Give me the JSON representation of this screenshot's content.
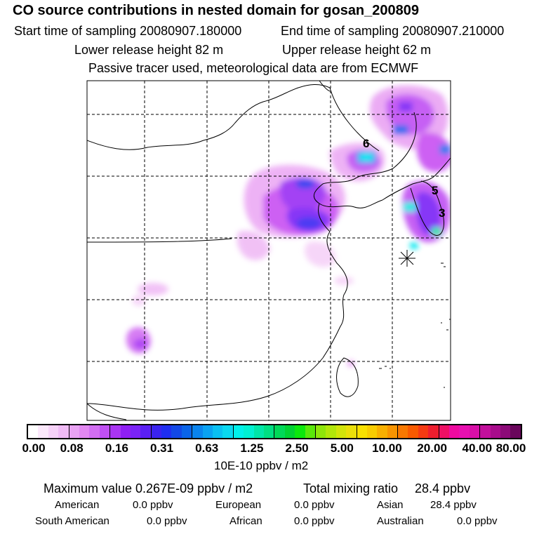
{
  "header": {
    "title": "CO  source contributions in nested domain for gosan_200809",
    "start": "Start time of sampling 20080907.180000",
    "end": "End time of sampling 20080907.210000",
    "lower": "Lower release height   82 m",
    "upper": "Upper release height   62 m",
    "note": "Passive tracer used, meteorological data are from ECMWF"
  },
  "map": {
    "labels": [
      "6",
      "5",
      "3"
    ],
    "station_marker": "asterisk"
  },
  "colorbar": {
    "colors": [
      "#ffffff",
      "#fbe8fb",
      "#f6d2f8",
      "#f0bbf5",
      "#e9a3f3",
      "#e288f1",
      "#d26ef2",
      "#c050f3",
      "#a935f3",
      "#8e1ff3",
      "#7a23f6",
      "#5a1ff3",
      "#3a23f0",
      "#1f2ef0",
      "#1248e6",
      "#0a64e8",
      "#0a84ee",
      "#0aa2f2",
      "#0ac0f2",
      "#0ad8f0",
      "#00f0ea",
      "#00f0d2",
      "#00e6a8",
      "#00df82",
      "#00d858",
      "#00d232",
      "#0ce80c",
      "#5ae80a",
      "#8ee60a",
      "#b2e60a",
      "#d2e40a",
      "#eadf0a",
      "#f8e000",
      "#f8cc00",
      "#f8b000",
      "#f89400",
      "#f87800",
      "#f85a00",
      "#f53a12",
      "#ee1e2e",
      "#ee1064",
      "#ee0aa0",
      "#e80fb0",
      "#d80fa8",
      "#c20f9c",
      "#a80c8c",
      "#8c0a78",
      "#6a065c"
    ],
    "ticks": [
      "0.00",
      "0.08",
      "0.16",
      "0.31",
      "0.63",
      "1.25",
      "2.50",
      "5.00",
      "10.00",
      "20.00",
      "40.00",
      "80.00"
    ],
    "units": "10E-10 ppbv / m2"
  },
  "summary": {
    "max_value": "Maximum value  0.267E-09 ppbv / m2",
    "total_label": "Total mixing ratio",
    "total_value": "28.4 ppbv",
    "american_label": "American",
    "american_value": "0.0 ppbv",
    "european_label": "European",
    "european_value": "0.0 ppbv",
    "asian_label": "Asian",
    "asian_value": "28.4 ppbv",
    "south_american_label": "South American",
    "south_american_value": "0.0 ppbv",
    "african_label": "African",
    "african_value": "0.0 ppbv",
    "australian_label": "Australian",
    "australian_value": "0.0 ppbv"
  }
}
